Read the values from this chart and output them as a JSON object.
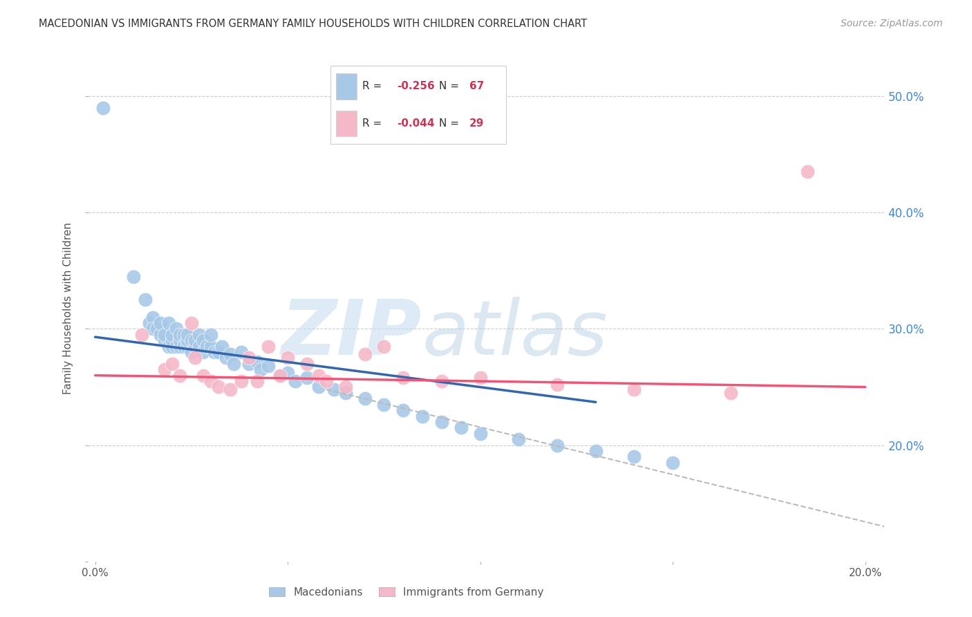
{
  "title": "MACEDONIAN VS IMMIGRANTS FROM GERMANY FAMILY HOUSEHOLDS WITH CHILDREN CORRELATION CHART",
  "source": "Source: ZipAtlas.com",
  "ylabel": "Family Households with Children",
  "xlim": [
    -0.002,
    0.205
  ],
  "ylim": [
    0.1,
    0.535
  ],
  "color_blue": "#a8c8e8",
  "color_pink": "#f4b8c8",
  "color_line_blue": "#3366aa",
  "color_line_pink": "#ee5577",
  "color_line_dashed": "#bbbbbb",
  "color_right_axis": "#4488cc",
  "color_grid": "#cccccc",
  "legend_r1": "-0.256",
  "legend_n1": "67",
  "legend_r2": "-0.044",
  "legend_n2": "29",
  "blue_scatter_x": [
    0.002,
    0.01,
    0.013,
    0.014,
    0.015,
    0.015,
    0.016,
    0.017,
    0.017,
    0.018,
    0.018,
    0.019,
    0.019,
    0.02,
    0.02,
    0.02,
    0.021,
    0.021,
    0.022,
    0.022,
    0.022,
    0.023,
    0.023,
    0.024,
    0.024,
    0.024,
    0.025,
    0.025,
    0.026,
    0.026,
    0.027,
    0.027,
    0.028,
    0.028,
    0.029,
    0.03,
    0.03,
    0.031,
    0.032,
    0.033,
    0.034,
    0.035,
    0.036,
    0.038,
    0.04,
    0.042,
    0.043,
    0.045,
    0.048,
    0.05,
    0.052,
    0.055,
    0.058,
    0.062,
    0.065,
    0.07,
    0.075,
    0.08,
    0.085,
    0.09,
    0.095,
    0.1,
    0.11,
    0.12,
    0.13,
    0.14,
    0.15
  ],
  "blue_scatter_y": [
    0.49,
    0.345,
    0.325,
    0.305,
    0.31,
    0.3,
    0.3,
    0.295,
    0.305,
    0.29,
    0.295,
    0.285,
    0.305,
    0.285,
    0.29,
    0.295,
    0.285,
    0.3,
    0.285,
    0.29,
    0.295,
    0.285,
    0.295,
    0.285,
    0.29,
    0.295,
    0.28,
    0.29,
    0.285,
    0.29,
    0.285,
    0.295,
    0.28,
    0.29,
    0.285,
    0.285,
    0.295,
    0.28,
    0.28,
    0.285,
    0.275,
    0.278,
    0.27,
    0.28,
    0.27,
    0.272,
    0.265,
    0.268,
    0.26,
    0.262,
    0.255,
    0.258,
    0.25,
    0.248,
    0.245,
    0.24,
    0.235,
    0.23,
    0.225,
    0.22,
    0.215,
    0.21,
    0.205,
    0.2,
    0.195,
    0.19,
    0.185
  ],
  "pink_scatter_x": [
    0.012,
    0.018,
    0.02,
    0.022,
    0.025,
    0.026,
    0.028,
    0.03,
    0.032,
    0.035,
    0.038,
    0.04,
    0.042,
    0.045,
    0.048,
    0.05,
    0.055,
    0.058,
    0.06,
    0.065,
    0.07,
    0.075,
    0.08,
    0.09,
    0.1,
    0.12,
    0.14,
    0.165,
    0.185
  ],
  "pink_scatter_y": [
    0.295,
    0.265,
    0.27,
    0.26,
    0.305,
    0.275,
    0.26,
    0.255,
    0.25,
    0.248,
    0.255,
    0.275,
    0.255,
    0.285,
    0.26,
    0.275,
    0.27,
    0.26,
    0.255,
    0.25,
    0.278,
    0.285,
    0.258,
    0.255,
    0.258,
    0.252,
    0.248,
    0.245,
    0.435
  ],
  "blue_line_x": [
    0.0,
    0.13
  ],
  "blue_line_y": [
    0.293,
    0.237
  ],
  "pink_line_x": [
    0.0,
    0.2
  ],
  "pink_line_y": [
    0.26,
    0.25
  ],
  "dashed_line_x": [
    0.06,
    0.205
  ],
  "dashed_line_y": [
    0.248,
    0.13
  ],
  "ytick_right_values": [
    0.2,
    0.3,
    0.4,
    0.5
  ],
  "ytick_right_labels": [
    "20.0%",
    "30.0%",
    "40.0%",
    "50.0%"
  ],
  "ytick_left_values": [
    0.1,
    0.2,
    0.3,
    0.4,
    0.5
  ],
  "xtick_values": [
    0.0,
    0.05,
    0.1,
    0.15,
    0.2
  ],
  "xtick_labels": [
    "0.0%",
    "",
    "",
    "",
    "20.0%"
  ],
  "grid_values": [
    0.1,
    0.2,
    0.3,
    0.4,
    0.5
  ]
}
